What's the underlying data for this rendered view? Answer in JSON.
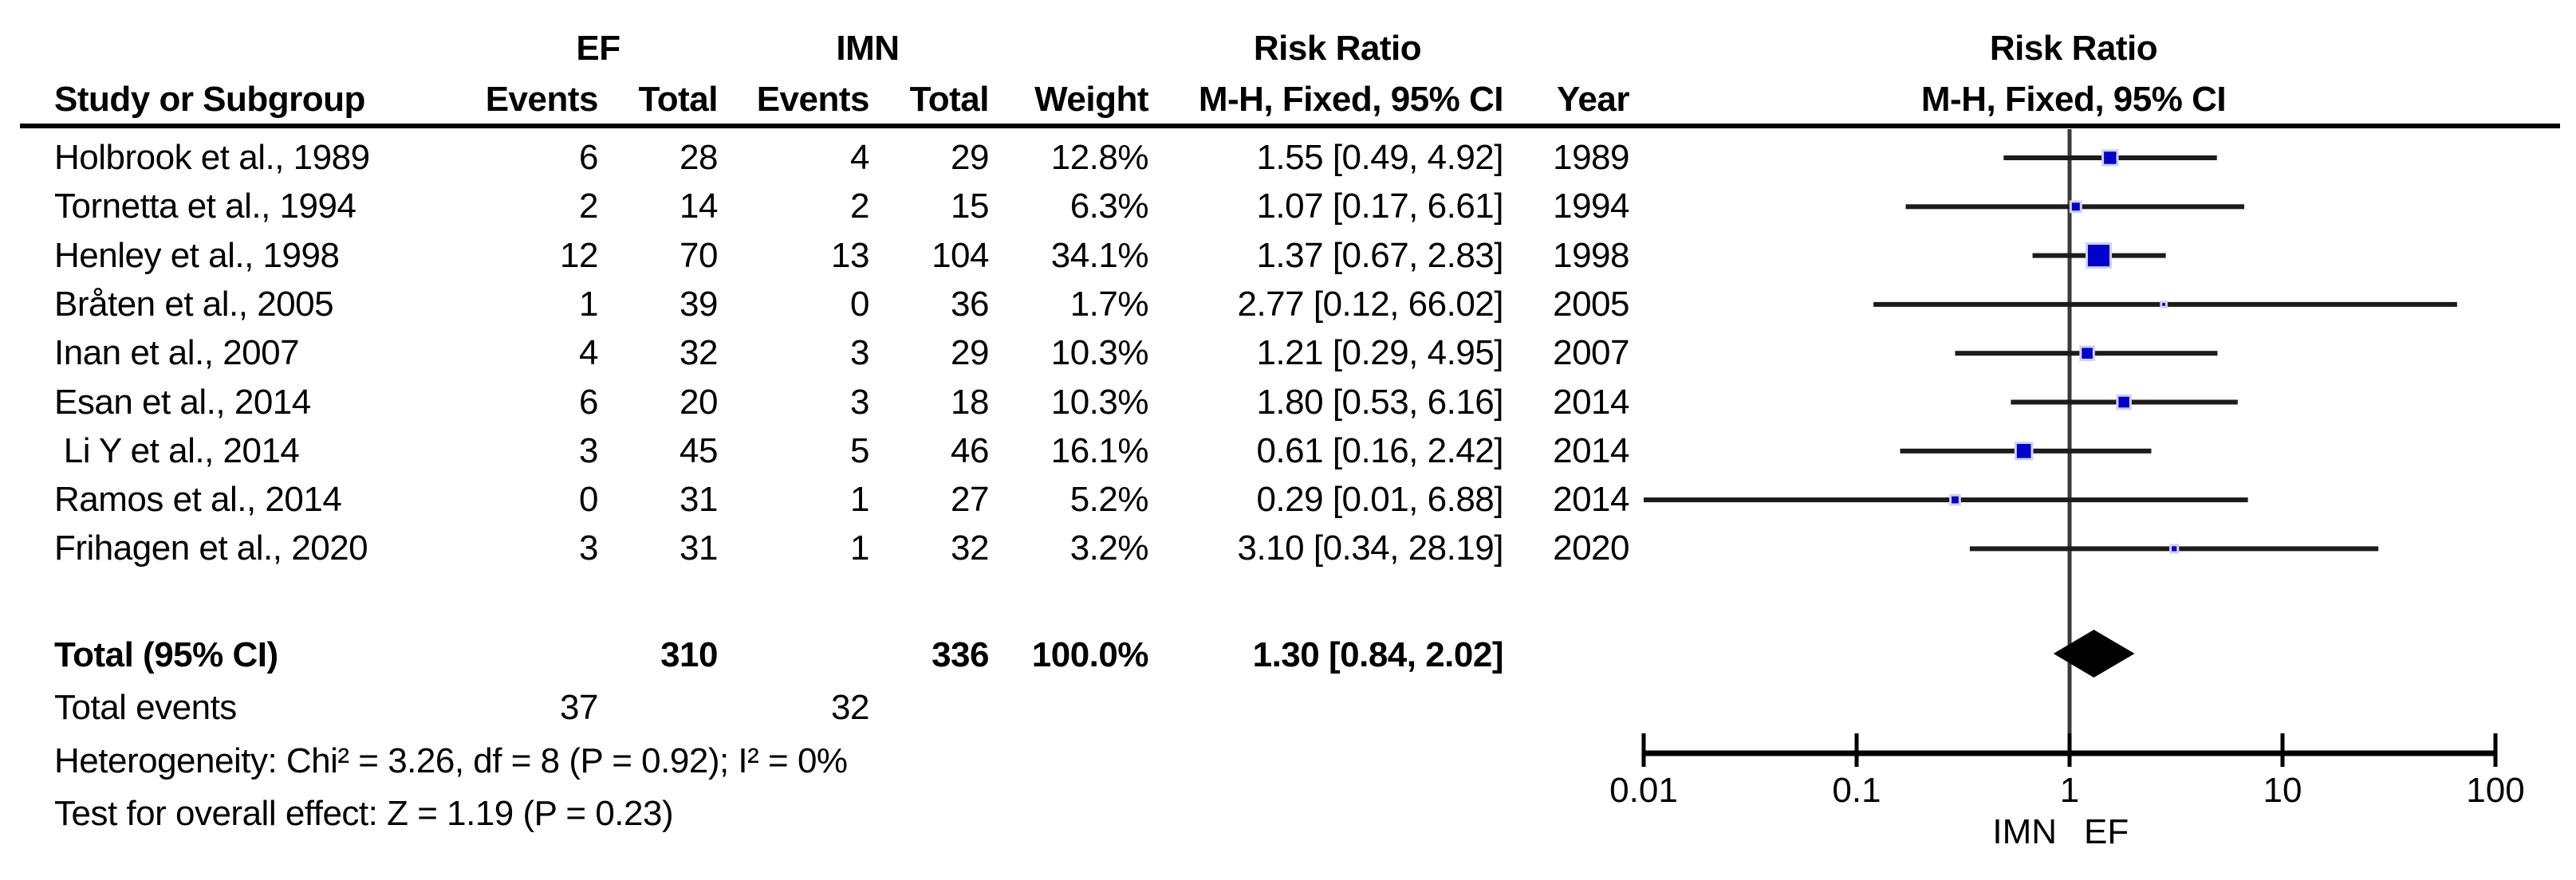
{
  "table": {
    "group_headers": {
      "ef": "EF",
      "imn": "IMN",
      "risk_ratio": "Risk Ratio"
    },
    "col_headers": {
      "study": "Study or Subgroup",
      "events": "Events",
      "total": "Total",
      "weight": "Weight",
      "mh": "M-H, Fixed, 95% CI",
      "year": "Year"
    }
  },
  "studies": [
    {
      "name": "Holbrook et al., 1989",
      "ef_events": "6",
      "ef_total": "28",
      "imn_events": "4",
      "imn_total": "29",
      "weight": "12.8%",
      "rr_ci": "1.55 [0.49, 4.92]",
      "year": "1989"
    },
    {
      "name": "Tornetta et al., 1994",
      "ef_events": "2",
      "ef_total": "14",
      "imn_events": "2",
      "imn_total": "15",
      "weight": "6.3%",
      "rr_ci": "1.07 [0.17, 6.61]",
      "year": "1994"
    },
    {
      "name": "Henley et al., 1998",
      "ef_events": "12",
      "ef_total": "70",
      "imn_events": "13",
      "imn_total": "104",
      "weight": "34.1%",
      "rr_ci": "1.37 [0.67, 2.83]",
      "year": "1998"
    },
    {
      "name": "Bråten et al., 2005",
      "ef_events": "1",
      "ef_total": "39",
      "imn_events": "0",
      "imn_total": "36",
      "weight": "1.7%",
      "rr_ci": "2.77 [0.12, 66.02]",
      "year": "2005"
    },
    {
      "name": "Inan et al., 2007",
      "ef_events": "4",
      "ef_total": "32",
      "imn_events": "3",
      "imn_total": "29",
      "weight": "10.3%",
      "rr_ci": "1.21 [0.29, 4.95]",
      "year": "2007"
    },
    {
      "name": "Esan et al., 2014",
      "ef_events": "6",
      "ef_total": "20",
      "imn_events": "3",
      "imn_total": "18",
      "weight": "10.3%",
      "rr_ci": "1.80 [0.53, 6.16]",
      "year": "2014"
    },
    {
      "name": " Li Y et al., 2014",
      "ef_events": "3",
      "ef_total": "45",
      "imn_events": "5",
      "imn_total": "46",
      "weight": "16.1%",
      "rr_ci": "0.61 [0.16, 2.42]",
      "year": "2014"
    },
    {
      "name": "Ramos et al., 2014",
      "ef_events": "0",
      "ef_total": "31",
      "imn_events": "1",
      "imn_total": "27",
      "weight": "5.2%",
      "rr_ci": "0.29 [0.01, 6.88]",
      "year": "2014"
    },
    {
      "name": "Frihagen et al., 2020",
      "ef_events": "3",
      "ef_total": "31",
      "imn_events": "1",
      "imn_total": "32",
      "weight": "3.2%",
      "rr_ci": "3.10 [0.34, 28.19]",
      "year": "2020"
    }
  ],
  "totals": {
    "label": "Total (95% CI)",
    "ef_total": "310",
    "imn_total": "336",
    "weight": "100.0%",
    "rr_ci": "1.30 [0.84, 2.02]",
    "events_label": "Total events",
    "ef_events": "37",
    "imn_events": "32"
  },
  "footer": {
    "heterogeneity": "Heterogeneity: Chi² = 3.26, df = 8 (P = 0.92); I² = 0%",
    "overall_effect": "Test for overall effect: Z = 1.19 (P = 0.23)"
  },
  "chart_data": {
    "type": "scatter",
    "subtype": "forest-plot",
    "title": "Risk Ratio",
    "effect_measure": "M-H, Fixed, 95% CI",
    "x_scale": "log",
    "x_range": [
      0.01,
      100
    ],
    "x_ticks": [
      0.01,
      0.1,
      1,
      10,
      100
    ],
    "x_tick_labels": [
      "0.01",
      "0.1",
      "1",
      "10",
      "100"
    ],
    "xlabel_left": "IMN",
    "xlabel_right": "EF",
    "null_line": 1,
    "rows": [
      {
        "study": "Holbrook et al., 1989",
        "rr": 1.55,
        "ci": [
          0.49,
          4.92
        ],
        "weight": 12.8
      },
      {
        "study": "Tornetta et al., 1994",
        "rr": 1.07,
        "ci": [
          0.17,
          6.61
        ],
        "weight": 6.3
      },
      {
        "study": "Henley et al., 1998",
        "rr": 1.37,
        "ci": [
          0.67,
          2.83
        ],
        "weight": 34.1
      },
      {
        "study": "Bråten et al., 2005",
        "rr": 2.77,
        "ci": [
          0.12,
          66.02
        ],
        "weight": 1.7
      },
      {
        "study": "Inan et al., 2007",
        "rr": 1.21,
        "ci": [
          0.29,
          4.95
        ],
        "weight": 10.3
      },
      {
        "study": "Esan et al., 2014",
        "rr": 1.8,
        "ci": [
          0.53,
          6.16
        ],
        "weight": 10.3
      },
      {
        "study": "Li Y et al., 2014",
        "rr": 0.61,
        "ci": [
          0.16,
          2.42
        ],
        "weight": 16.1
      },
      {
        "study": "Ramos et al., 2014",
        "rr": 0.29,
        "ci": [
          0.01,
          6.88
        ],
        "weight": 5.2
      },
      {
        "study": "Frihagen et al., 2020",
        "rr": 3.1,
        "ci": [
          0.34,
          28.19
        ],
        "weight": 3.2
      }
    ],
    "summary": {
      "label": "Total (95% CI)",
      "rr": 1.3,
      "ci": [
        0.84,
        2.02
      ]
    },
    "marker_color": "#0000CC",
    "marker_border_color": "#d2d2f2",
    "line_color": "#1c1c1c",
    "diamond_color": "#000000",
    "axis_color": "#000000",
    "null_line_color": "#3a3a3a"
  }
}
